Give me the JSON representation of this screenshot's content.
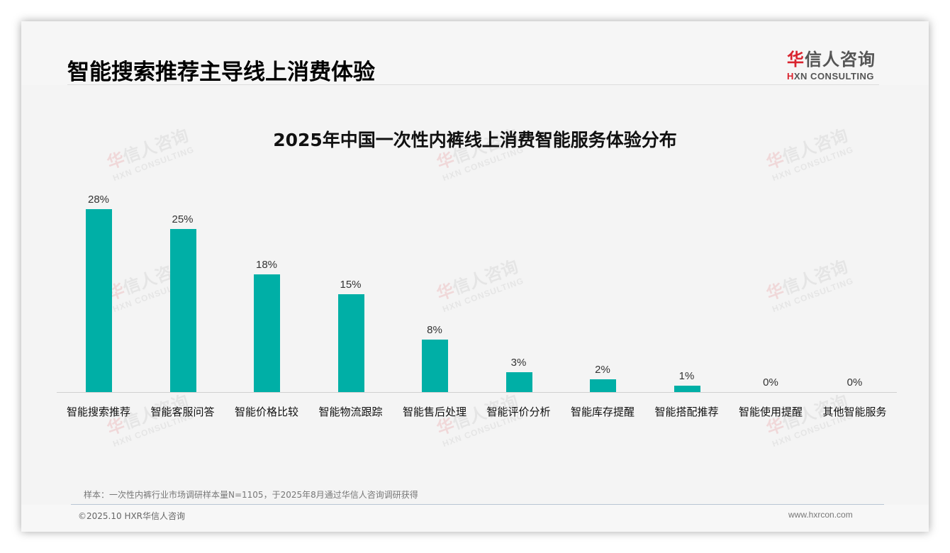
{
  "header": {
    "title": "智能搜索推荐主导线上消费体验",
    "logo_cn_first": "华",
    "logo_cn_rest": "信人咨询",
    "logo_en_first": "H",
    "logo_en_rest": "XN CONSULTING"
  },
  "watermark": {
    "cn_first": "华",
    "cn_rest": "信人咨询",
    "en": "HXN CONSULTING"
  },
  "chart_data": {
    "type": "bar",
    "title": "2025年中国一次性内裤线上消费智能服务体验分布",
    "categories": [
      "智能搜索推荐",
      "智能客服问答",
      "智能价格比较",
      "智能物流跟踪",
      "智能售后处理",
      "智能评价分析",
      "智能库存提醒",
      "智能搭配推荐",
      "智能使用提醒",
      "其他智能服务"
    ],
    "values": [
      28,
      25,
      18,
      15,
      8,
      3,
      2,
      1,
      0,
      0
    ],
    "labels": [
      "28%",
      "25%",
      "18%",
      "15%",
      "8%",
      "3%",
      "2%",
      "1%",
      "0%",
      "0%"
    ],
    "xlabel": "",
    "ylabel": "",
    "ylim": [
      0,
      30
    ],
    "grid": false,
    "legend": "none",
    "bar_color": "#00afa6"
  },
  "footer": {
    "note": "样本：一次性内裤行业市场调研样本量N=1105，于2025年8月通过华信人咨询调研获得",
    "copyright": "©2025.10 HXR华信人咨询",
    "website": "www.hxrcon.com"
  }
}
